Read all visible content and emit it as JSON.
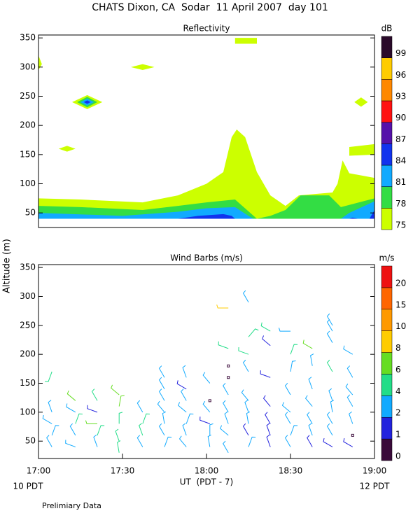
{
  "title": "CHATS Dixon, CA  Sodar  11 April 2007  day 101",
  "ylabel": "Altitude (m)",
  "xlabel": "UT  (PDT - 7)",
  "left_note": "10 PDT",
  "right_note": "12 PDT",
  "footnote": "Prelimiary Data",
  "chart_data": [
    {
      "type": "contour",
      "title": "Reflectivity",
      "xlim": [
        17,
        19
      ],
      "ylim": [
        25,
        355
      ],
      "yticks": [
        50,
        100,
        150,
        200,
        250,
        300,
        350
      ],
      "colorbar": {
        "label": "dB",
        "levels": [
          75,
          78,
          81,
          84,
          87,
          90,
          93,
          96,
          99
        ],
        "colors": [
          "#ccff00",
          "#33dd44",
          "#11aaff",
          "#1133ee",
          "#5511aa",
          "#ff1111",
          "#ff8800",
          "#ffcc00",
          "#2a0a2a"
        ]
      },
      "regions": [
        {
          "level": 75,
          "x": [
            17,
            17,
            17.25,
            17.62,
            17.83,
            18,
            18.1,
            18.15,
            18.18,
            18.23,
            18.3,
            18.38,
            18.47,
            18.55,
            18.75,
            18.78,
            18.81,
            18.85,
            19,
            19
          ],
          "y": [
            40,
            75,
            73,
            68,
            80,
            100,
            120,
            180,
            193,
            180,
            120,
            80,
            62,
            80,
            85,
            100,
            140,
            118,
            110,
            40
          ]
        },
        {
          "level": 75,
          "x": [
            18.85,
            18.85,
            19,
            19
          ],
          "y": [
            148,
            163,
            168,
            150
          ]
        },
        {
          "level": 75,
          "x": [
            17,
            17.02,
            17
          ],
          "y": [
            295,
            305,
            320
          ]
        },
        {
          "level": 75,
          "x": [
            17.12,
            17.17,
            17.22,
            17.17
          ],
          "y": [
            160,
            165,
            160,
            155
          ]
        },
        {
          "level": 75,
          "x": [
            17.55,
            17.62,
            17.69,
            17.62
          ],
          "y": [
            300,
            305,
            300,
            295
          ]
        },
        {
          "level": 75,
          "x": [
            18.17,
            18.17,
            18.3,
            18.3
          ],
          "y": [
            340,
            350,
            350,
            340
          ]
        },
        {
          "level": 75,
          "x": [
            18.88,
            18.92,
            18.96,
            18.92
          ],
          "y": [
            240,
            248,
            240,
            232
          ]
        },
        {
          "level": 75,
          "x": [
            17.2,
            17.29,
            17.38,
            17.29
          ],
          "y": [
            240,
            252,
            240,
            228
          ]
        },
        {
          "level": 78,
          "x": [
            17,
            17,
            17.25,
            17.62,
            17.83,
            18,
            18.17,
            18.3,
            18.38,
            18.47,
            18.56,
            18.73,
            18.8,
            19,
            19
          ],
          "y": [
            40,
            62,
            60,
            55,
            62,
            68,
            73,
            40,
            45,
            55,
            80,
            80,
            60,
            75,
            40
          ]
        },
        {
          "level": 78,
          "x": [
            17.23,
            17.29,
            17.35,
            17.29
          ],
          "y": [
            240,
            249,
            240,
            231
          ]
        },
        {
          "level": 81,
          "x": [
            17,
            17,
            17.5,
            17.83,
            18,
            18.17,
            18.25,
            18.28
          ],
          "y": [
            40,
            50,
            45,
            52,
            58,
            60,
            45,
            40
          ]
        },
        {
          "level": 81,
          "x": [
            18.8,
            18.85,
            19,
            19
          ],
          "y": [
            40,
            50,
            70,
            40
          ]
        },
        {
          "level": 81,
          "x": [
            17.25,
            17.29,
            17.33,
            17.29
          ],
          "y": [
            240,
            246,
            240,
            234
          ]
        },
        {
          "level": 84,
          "x": [
            17.83,
            17.95,
            18.1,
            18.15,
            18.17
          ],
          "y": [
            40,
            45,
            48,
            45,
            40
          ]
        },
        {
          "level": 84,
          "x": [
            18.85,
            18.87,
            18.9
          ],
          "y": [
            40,
            42,
            40
          ]
        },
        {
          "level": 84,
          "x": [
            18.97,
            19,
            19
          ],
          "y": [
            40,
            55,
            40
          ]
        },
        {
          "level": 84,
          "x": [
            17.27,
            17.29,
            17.31,
            17.29
          ],
          "y": [
            240,
            243,
            240,
            237
          ]
        }
      ]
    },
    {
      "type": "barbs",
      "title": "Wind Barbs (m/s)",
      "xlim": [
        17,
        19
      ],
      "ylim": [
        20,
        355
      ],
      "yticks": [
        50,
        100,
        150,
        200,
        250,
        300,
        350
      ],
      "xticks": [
        {
          "value": 17,
          "label": "17:00"
        },
        {
          "value": 17.5,
          "label": "17:30"
        },
        {
          "value": 18,
          "label": "18:00"
        },
        {
          "value": 18.5,
          "label": "18:30"
        },
        {
          "value": 19,
          "label": "19:00"
        }
      ],
      "colorbar": {
        "label": "m/s",
        "levels": [
          0,
          1,
          2,
          4,
          6,
          8,
          10,
          15,
          20
        ],
        "colors": [
          "#3a0a3a",
          "#2222dd",
          "#11aaff",
          "#22dd88",
          "#66dd22",
          "#ffcc00",
          "#ff9900",
          "#ff6600",
          "#ee1111"
        ]
      },
      "barbs": {
        "x": [
          17.08,
          17.08,
          17.08,
          17.08,
          17.08,
          17.22,
          17.22,
          17.22,
          17.22,
          17.22,
          17.35,
          17.35,
          17.35,
          17.35,
          17.35,
          17.48,
          17.48,
          17.48,
          17.48,
          17.48,
          17.62,
          17.62,
          17.62,
          17.62,
          17.75,
          17.75,
          17.75,
          17.75,
          17.75,
          17.75,
          17.75,
          17.88,
          17.88,
          17.88,
          17.88,
          17.88,
          17.88,
          17.88,
          18.02,
          18.02,
          18.02,
          18.02,
          18.02,
          18.02,
          18.13,
          18.13,
          18.13,
          18.13,
          18.13,
          18.13,
          18.13,
          18.13,
          18.13,
          18.25,
          18.25,
          18.25,
          18.25,
          18.25,
          18.25,
          18.25,
          18.25,
          18.25,
          18.38,
          18.38,
          18.38,
          18.38,
          18.38,
          18.38,
          18.38,
          18.5,
          18.5,
          18.5,
          18.5,
          18.5,
          18.5,
          18.5,
          18.5,
          18.63,
          18.63,
          18.63,
          18.63,
          18.63,
          18.63,
          18.63,
          18.75,
          18.75,
          18.75,
          18.75,
          18.75,
          18.75,
          18.75,
          18.75,
          18.75,
          18.87,
          18.87,
          18.87,
          18.87,
          18.87,
          18.87,
          18.87
        ],
        "y": [
          40,
          60,
          80,
          100,
          170,
          40,
          60,
          80,
          100,
          120,
          40,
          60,
          80,
          100,
          120,
          30,
          50,
          80,
          110,
          130,
          40,
          60,
          80,
          100,
          40,
          60,
          80,
          100,
          120,
          140,
          160,
          40,
          60,
          80,
          100,
          120,
          140,
          160,
          40,
          60,
          80,
          100,
          120,
          150,
          30,
          60,
          80,
          100,
          130,
          160,
          180,
          210,
          280,
          40,
          60,
          80,
          100,
          120,
          170,
          200,
          230,
          290,
          40,
          60,
          80,
          110,
          160,
          215,
          240,
          40,
          60,
          80,
          100,
          130,
          170,
          200,
          240,
          40,
          60,
          80,
          110,
          140,
          180,
          210,
          40,
          60,
          80,
          100,
          120,
          170,
          220,
          240,
          250,
          40,
          60,
          80,
          110,
          130,
          160,
          200
        ],
        "speed": [
          2.5,
          3,
          2.5,
          2,
          5,
          2.5,
          3,
          5,
          3,
          6,
          3,
          4,
          6,
          1.5,
          4,
          4,
          5,
          5,
          6,
          6,
          3,
          4,
          4,
          3,
          3,
          3,
          3,
          3,
          2.5,
          3,
          3,
          2,
          3,
          3,
          3,
          2,
          1.5,
          3,
          3,
          3,
          1,
          3,
          0.5,
          2,
          2,
          3,
          3,
          2,
          3,
          0.5,
          0.5,
          4,
          8,
          3,
          1.5,
          2,
          3,
          2,
          3,
          5,
          4,
          3,
          1.5,
          1.5,
          1.5,
          1.5,
          1,
          1.5,
          5,
          3,
          2,
          3,
          3,
          3,
          3,
          4,
          3,
          1.5,
          2,
          3,
          3,
          3,
          3,
          6,
          1.5,
          3,
          3,
          3,
          3,
          4,
          3,
          3,
          3,
          1.5,
          0.5,
          3,
          3,
          3,
          3,
          3
        ],
        "direction": [
          330,
          20,
          300,
          340,
          200,
          290,
          330,
          20,
          300,
          310,
          340,
          20,
          270,
          290,
          330,
          350,
          340,
          0,
          10,
          310,
          330,
          340,
          20,
          330,
          20,
          330,
          350,
          320,
          330,
          330,
          330,
          320,
          340,
          20,
          310,
          330,
          300,
          340,
          350,
          0,
          290,
          320,
          0,
          320,
          330,
          310,
          340,
          330,
          330,
          0,
          0,
          290,
          270,
          20,
          330,
          350,
          340,
          320,
          330,
          290,
          40,
          330,
          340,
          340,
          330,
          320,
          290,
          310,
          300,
          330,
          20,
          330,
          310,
          330,
          10,
          20,
          270,
          330,
          340,
          330,
          320,
          340,
          350,
          300,
          300,
          330,
          330,
          350,
          340,
          330,
          330,
          330,
          330,
          300,
          0,
          340,
          330,
          320,
          330,
          300
        ]
      }
    }
  ]
}
